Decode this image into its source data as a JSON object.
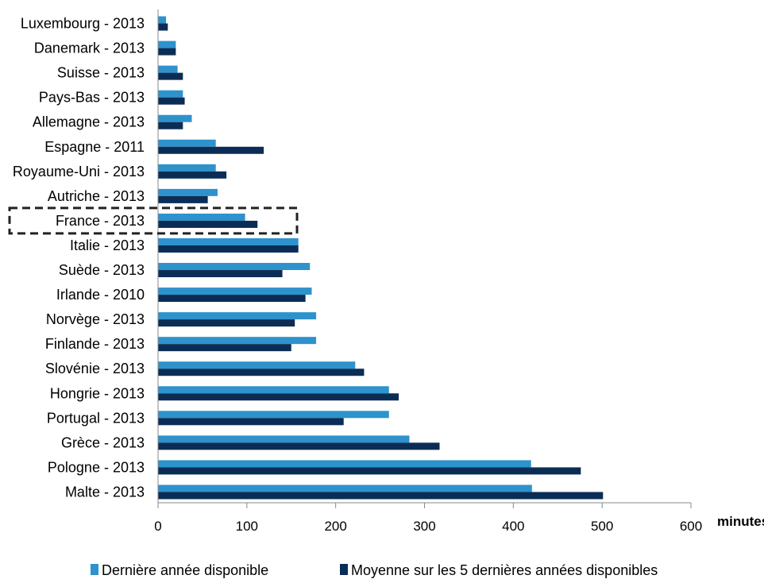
{
  "chart_data": {
    "type": "bar",
    "orientation": "horizontal",
    "categories": [
      "Luxembourg - 2013",
      "Danemark - 2013",
      "Suisse - 2013",
      "Pays-Bas - 2013",
      "Allemagne - 2013",
      "Espagne - 2011",
      "Royaume-Uni - 2013",
      "Autriche - 2013",
      "France - 2013",
      "Italie - 2013",
      "Suède - 2013",
      "Irlande - 2010",
      "Norvège - 2013",
      "Finlande - 2013",
      "Slovénie - 2013",
      "Hongrie - 2013",
      "Portugal - 2013",
      "Grèce  - 2013",
      "Pologne - 2013",
      "Malte - 2013"
    ],
    "series": [
      {
        "name": "Dernière année disponible",
        "color": "#2e92cc",
        "values": [
          9,
          20,
          22,
          28,
          38,
          65,
          65,
          67,
          98,
          158,
          171,
          173,
          178,
          178,
          222,
          260,
          260,
          283,
          420,
          421
        ]
      },
      {
        "name": "Moyenne sur les 5 dernières années disponibles",
        "color": "#0b2d55",
        "values": [
          11,
          20,
          28,
          30,
          28,
          119,
          77,
          56,
          112,
          158,
          140,
          166,
          154,
          150,
          232,
          271,
          209,
          317,
          476,
          501
        ]
      }
    ],
    "xlim": [
      0,
      600
    ],
    "xticks": [
      0,
      100,
      200,
      300,
      400,
      500,
      600
    ],
    "xlabel": "minutes",
    "highlight_category": "France - 2013",
    "legend_position": "bottom",
    "grid": false
  }
}
